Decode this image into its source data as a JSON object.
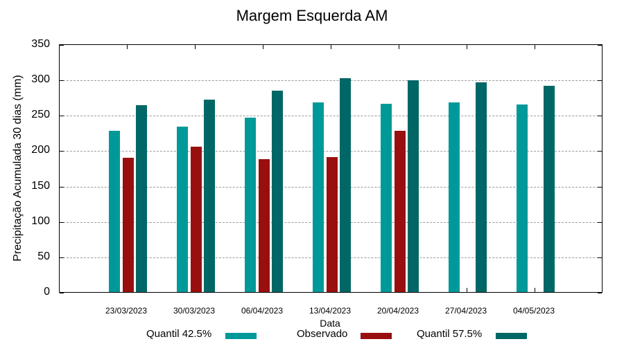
{
  "chart_data": {
    "type": "bar",
    "title": "Margem Esquerda AM",
    "xlabel": "Data",
    "ylabel": "Precipitação Acumulada 30 dias (mm)",
    "ylim": [
      0,
      350
    ],
    "yticks": [
      0,
      50,
      100,
      150,
      200,
      250,
      300,
      350
    ],
    "grid": true,
    "legend_position": "bottom",
    "categories": [
      "23/03/2023",
      "30/03/2023",
      "06/04/2023",
      "13/04/2023",
      "20/04/2023",
      "27/04/2023",
      "04/05/2023"
    ],
    "series": [
      {
        "name": "Quantil 42.5%",
        "color": "#009999",
        "values": [
          228,
          234,
          246,
          268,
          266,
          268,
          265
        ]
      },
      {
        "name": "Observado",
        "color": "#990F0F",
        "values": [
          190,
          205,
          188,
          191,
          228,
          null,
          null
        ]
      },
      {
        "name": "Quantil 57.5%",
        "color": "#006666",
        "values": [
          264,
          272,
          285,
          302,
          299,
          296,
          291
        ]
      }
    ]
  },
  "labels": {
    "title": "Margem Esquerda AM",
    "xlabel": "Data",
    "ylabel": "Precipitação Acumulada 30 dias (mm)",
    "yticks": [
      "0",
      "50",
      "100",
      "150",
      "200",
      "250",
      "300",
      "350"
    ],
    "xticks": [
      "23/03/2023",
      "30/03/2023",
      "06/04/2023",
      "13/04/2023",
      "20/04/2023",
      "27/04/2023",
      "04/05/2023"
    ],
    "legend": [
      "Quantil 42.5%",
      "Observado",
      "Quantil 57.5%"
    ]
  }
}
